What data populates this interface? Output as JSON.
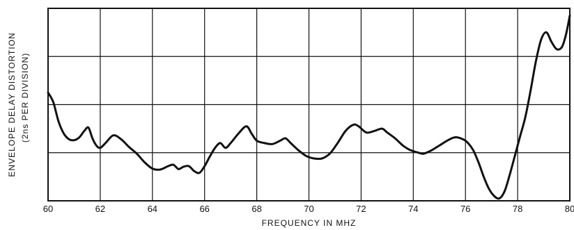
{
  "chart_data": {
    "type": "line",
    "title": "",
    "xlabel": "FREQUENCY IN MHZ",
    "ylabel_lines": [
      "ENVELOPE DELAY DISTORTION",
      "(2ns PER DIVISION)"
    ],
    "xlim": [
      60,
      80
    ],
    "ylim": [
      0,
      4
    ],
    "xticks": [
      60,
      62,
      64,
      66,
      68,
      70,
      72,
      74,
      76,
      78,
      80
    ],
    "ytick_count": 4,
    "grid": true,
    "legend": "none",
    "line_color": "#111111",
    "series": [
      {
        "x": [
          60.0,
          60.2,
          60.4,
          60.6,
          60.8,
          61.0,
          61.2,
          61.4,
          61.55,
          61.7,
          61.85,
          62.0,
          62.2,
          62.5,
          62.8,
          63.1,
          63.4,
          63.7,
          64.0,
          64.3,
          64.6,
          64.8,
          65.0,
          65.2,
          65.4,
          65.6,
          65.8,
          66.0,
          66.2,
          66.4,
          66.6,
          66.8,
          67.0,
          67.3,
          67.6,
          67.8,
          68.0,
          68.3,
          68.6,
          68.9,
          69.1,
          69.3,
          69.6,
          69.9,
          70.2,
          70.5,
          70.8,
          71.1,
          71.4,
          71.7,
          71.9,
          72.2,
          72.5,
          72.8,
          73.0,
          73.3,
          73.6,
          73.9,
          74.2,
          74.4,
          74.7,
          75.0,
          75.3,
          75.6,
          75.9,
          76.1,
          76.3,
          76.5,
          76.7,
          76.9,
          77.1,
          77.3,
          77.5,
          77.7,
          77.9,
          78.1,
          78.3,
          78.5,
          78.7,
          78.9,
          79.1,
          79.3,
          79.5,
          79.7,
          79.85,
          80.0
        ],
        "y": [
          2.25,
          2.05,
          1.65,
          1.4,
          1.28,
          1.26,
          1.32,
          1.46,
          1.52,
          1.3,
          1.15,
          1.1,
          1.2,
          1.36,
          1.28,
          1.12,
          0.98,
          0.8,
          0.67,
          0.65,
          0.72,
          0.75,
          0.66,
          0.71,
          0.72,
          0.62,
          0.58,
          0.72,
          0.92,
          1.1,
          1.2,
          1.1,
          1.2,
          1.4,
          1.55,
          1.4,
          1.25,
          1.2,
          1.18,
          1.25,
          1.3,
          1.2,
          1.05,
          0.93,
          0.88,
          0.88,
          0.98,
          1.2,
          1.45,
          1.58,
          1.55,
          1.42,
          1.45,
          1.5,
          1.42,
          1.3,
          1.15,
          1.05,
          1.0,
          0.98,
          1.05,
          1.15,
          1.25,
          1.32,
          1.28,
          1.2,
          1.05,
          0.8,
          0.5,
          0.25,
          0.1,
          0.05,
          0.2,
          0.55,
          0.95,
          1.35,
          1.75,
          2.3,
          2.9,
          3.35,
          3.5,
          3.3,
          3.15,
          3.2,
          3.45,
          3.85
        ]
      }
    ]
  }
}
